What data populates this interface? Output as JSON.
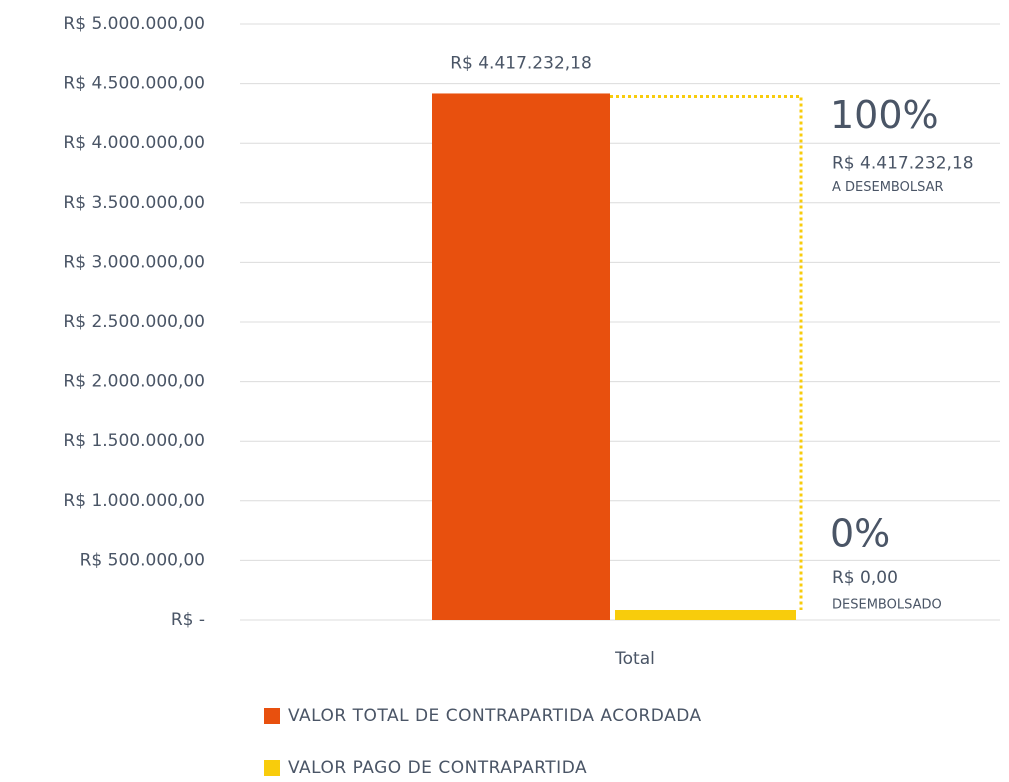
{
  "chart_data": {
    "type": "bar",
    "categories": [
      "Total"
    ],
    "series": [
      {
        "name": "VALOR TOTAL DE CONTRAPARTIDA ACORDADA",
        "color": "#e8500e",
        "values": [
          4417232.18
        ],
        "value_labels": [
          "R$ 4.417.232,18"
        ]
      },
      {
        "name": "VALOR PAGO DE CONTRAPARTIDA",
        "color": "#f8cc0c",
        "values": [
          0
        ]
      }
    ],
    "ylim": [
      0,
      5000000
    ],
    "yticks": [
      {
        "value": 0,
        "label": "R$ -"
      },
      {
        "value": 500000,
        "label": "R$ 500.000,00"
      },
      {
        "value": 1000000,
        "label": "R$ 1.000.000,00"
      },
      {
        "value": 1500000,
        "label": "R$ 1.500.000,00"
      },
      {
        "value": 2000000,
        "label": "R$ 2.000.000,00"
      },
      {
        "value": 2500000,
        "label": "R$ 2.500.000,00"
      },
      {
        "value": 3000000,
        "label": "R$ 3.000.000,00"
      },
      {
        "value": 3500000,
        "label": "R$ 3.500.000,00"
      },
      {
        "value": 4000000,
        "label": "R$ 4.000.000,00"
      },
      {
        "value": 4500000,
        "label": "R$ 4.500.000,00"
      },
      {
        "value": 5000000,
        "label": "R$ 5.000.000,00"
      }
    ],
    "grid": true,
    "annotations": [
      {
        "percent": "100%",
        "amount": "R$ 4.417.232,18",
        "label": "A DESEMBOLSAR"
      },
      {
        "percent": "0%",
        "amount": "R$ 0,00",
        "label": "DESEMBOLSADO"
      }
    ]
  }
}
